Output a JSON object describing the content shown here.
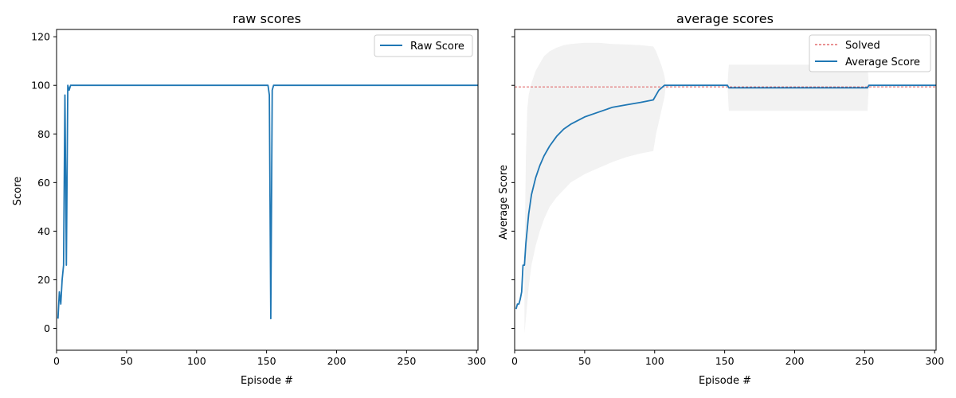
{
  "chart_data": [
    {
      "type": "line",
      "title": "raw scores",
      "xlabel": "Episode #",
      "ylabel": "Score",
      "xlim": [
        0,
        301
      ],
      "ylim": [
        -9,
        123
      ],
      "xticks": [
        "0",
        "50",
        "100",
        "150",
        "200",
        "250",
        "300"
      ],
      "yticks": [
        "0",
        "20",
        "40",
        "60",
        "80",
        "100",
        "120"
      ],
      "legend": "top-right",
      "grid": false,
      "series": [
        {
          "name": "Raw Score",
          "color": "#1f77b4",
          "x": [
            1,
            2,
            3,
            4,
            5,
            6,
            7,
            8,
            9,
            10,
            11,
            12,
            150,
            151,
            152,
            153,
            154,
            155,
            156,
            157,
            301
          ],
          "y": [
            4,
            15,
            10,
            20,
            26,
            96,
            26,
            100,
            98,
            100,
            100,
            100,
            100,
            100,
            96,
            4,
            98,
            100,
            100,
            100,
            100
          ]
        }
      ]
    },
    {
      "type": "line",
      "title": "average scores",
      "xlabel": "Episode #",
      "ylabel": "Average Score",
      "xlim": [
        0,
        301
      ],
      "ylim": [
        -9,
        123
      ],
      "xticks": [
        "0",
        "50",
        "100",
        "150",
        "200",
        "250",
        "300"
      ],
      "legend": "top-right",
      "grid": false,
      "series": [
        {
          "name": "Solved",
          "color": "#d62728",
          "style": "dashed",
          "x": [
            0,
            301
          ],
          "y": [
            99.4,
            99.4
          ]
        },
        {
          "name": "Average Score",
          "color": "#1f77b4",
          "x": [
            1,
            2,
            3,
            4,
            5,
            6,
            7,
            8,
            10,
            12,
            15,
            18,
            21,
            25,
            30,
            35,
            40,
            50,
            60,
            70,
            80,
            90,
            99,
            101,
            103,
            105,
            107,
            152,
            153,
            252,
            253,
            301
          ],
          "y": [
            8,
            10,
            10,
            12,
            15,
            26,
            26,
            35,
            47,
            55,
            62,
            67,
            71,
            75,
            79,
            82,
            84,
            87,
            89,
            91,
            92,
            93,
            94,
            96,
            98,
            99,
            100,
            100,
            99,
            99,
            100,
            100
          ]
        }
      ],
      "band": {
        "color": "#f2f2f2",
        "x": [
          7,
          8,
          9,
          10,
          12,
          15,
          18,
          21,
          25,
          30,
          35,
          40,
          50,
          60,
          70,
          80,
          90,
          99,
          101,
          103,
          105,
          107,
          108,
          152,
          153,
          252,
          253
        ],
        "upper": [
          26,
          70,
          90,
          96,
          101,
          106,
          109,
          112,
          114,
          115.5,
          116.5,
          117,
          117.5,
          117.5,
          117,
          116.8,
          116.5,
          116,
          114,
          111,
          108,
          104,
          100,
          100,
          108.5,
          108.5,
          100
        ],
        "lower": [
          -2,
          4,
          10,
          17,
          26,
          34,
          40,
          45,
          50,
          54,
          57,
          60,
          63.5,
          66,
          68.5,
          70.5,
          72,
          73,
          80,
          85,
          90,
          95,
          100,
          100,
          89.5,
          89.5,
          100
        ]
      }
    }
  ]
}
